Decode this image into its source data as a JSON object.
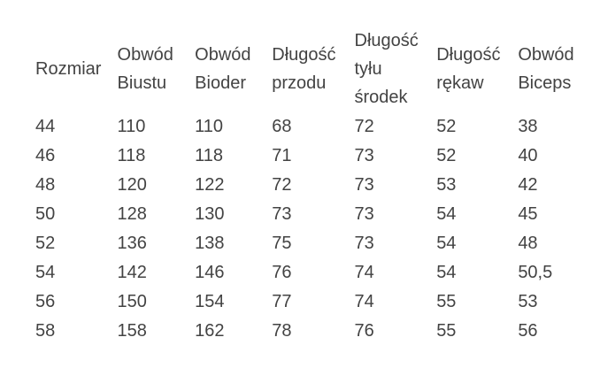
{
  "page": {
    "background_color": "#ffffff",
    "text_color": "#434343"
  },
  "chart_data": {
    "type": "table",
    "title": "",
    "columns": [
      "Rozmiar",
      "Obwód Biustu",
      "Obwód Bioder",
      "Długość przodu",
      "Długość tyłu środek",
      "Długość rękaw",
      "Obwód Biceps"
    ],
    "rows": [
      [
        "44",
        "110",
        "110",
        "68",
        "72",
        "52",
        "38"
      ],
      [
        "46",
        "118",
        "118",
        "71",
        "73",
        "52",
        "40"
      ],
      [
        "48",
        "120",
        "122",
        "72",
        "73",
        "53",
        "42"
      ],
      [
        "50",
        "128",
        "130",
        "73",
        "73",
        "54",
        "45"
      ],
      [
        "52",
        "136",
        "138",
        "75",
        "73",
        "54",
        "48"
      ],
      [
        "54",
        "142",
        "146",
        "76",
        "74",
        "54",
        "50,5"
      ],
      [
        "56",
        "150",
        "154",
        "77",
        "74",
        "55",
        "53"
      ],
      [
        "58",
        "158",
        "162",
        "78",
        "76",
        "55",
        "56"
      ]
    ]
  }
}
